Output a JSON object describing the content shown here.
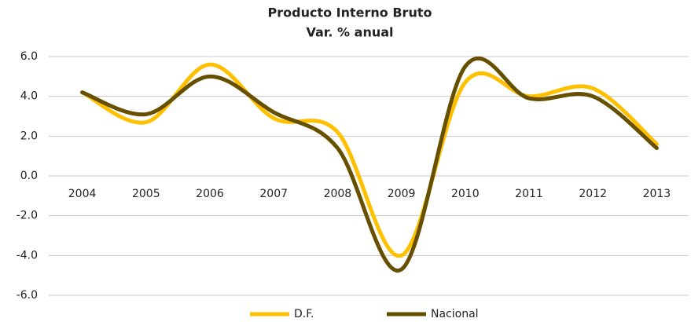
{
  "chart_data": {
    "type": "line",
    "title": "Producto Interno Bruto",
    "subtitle": "Var. % anual",
    "categories": [
      "2004",
      "2005",
      "2006",
      "2007",
      "2008",
      "2009",
      "2010",
      "2011",
      "2012",
      "2013"
    ],
    "series": [
      {
        "name": "D.F.",
        "color": "#FFC000",
        "values": [
          4.2,
          2.7,
          5.6,
          2.9,
          2.2,
          -4.0,
          4.7,
          4.0,
          4.4,
          1.6
        ]
      },
      {
        "name": "Nacional",
        "color": "#665000",
        "values": [
          4.2,
          3.1,
          5.0,
          3.2,
          1.4,
          -4.7,
          5.5,
          3.9,
          4.0,
          1.4
        ]
      }
    ],
    "ylim": [
      -6,
      6
    ],
    "yticks": [
      {
        "value": -6,
        "label": "-6.0"
      },
      {
        "value": -4,
        "label": "-4.0"
      },
      {
        "value": -2,
        "label": "-2.0"
      },
      {
        "value": 0,
        "label": "0.0"
      },
      {
        "value": 2,
        "label": "2.0"
      },
      {
        "value": 4,
        "label": "4.0"
      },
      {
        "value": 6,
        "label": "6.0"
      }
    ],
    "grid": true,
    "legend": "bottom"
  }
}
